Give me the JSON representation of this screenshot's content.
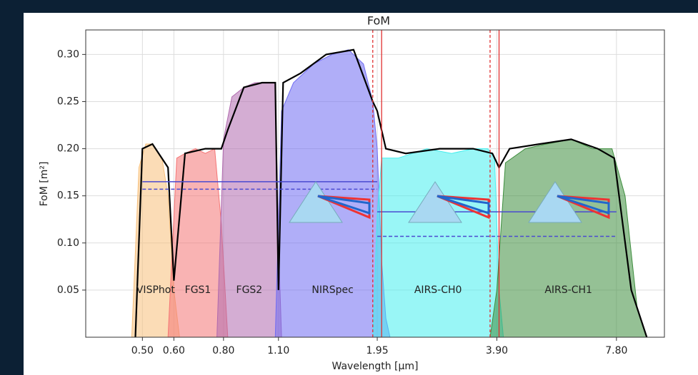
{
  "chart_data": {
    "type": "area",
    "title": "FoM",
    "xlabel": "Wavelength [μm]",
    "ylabel": "FoM [m²]",
    "xscale": "log",
    "grid": true,
    "xlim": [
      0.36,
      10.3
    ],
    "ylim": [
      0,
      0.326
    ],
    "xticks": [
      {
        "value": 0.5,
        "label": "0.50"
      },
      {
        "value": 0.6,
        "label": "0.60"
      },
      {
        "value": 0.8,
        "label": "0.80"
      },
      {
        "value": 1.1,
        "label": "1.10"
      },
      {
        "value": 1.95,
        "label": "1.95"
      },
      {
        "value": 3.9,
        "label": "3.90"
      },
      {
        "value": 7.8,
        "label": "7.80"
      }
    ],
    "yticks": [
      0.05,
      {
        "value": 0.1,
        "label": "0.10"
      },
      0.15,
      {
        "value": 0.2,
        "label": "0.20"
      },
      0.25,
      {
        "value": 0.3,
        "label": "0.30"
      }
    ],
    "series": [
      {
        "name": "VISPhot",
        "color": "#f7bf7a",
        "x": [
          0.47,
          0.49,
          0.51,
          0.53,
          0.56,
          0.58,
          0.6,
          0.62
        ],
        "values": [
          0,
          0.18,
          0.205,
          0.205,
          0.19,
          0.15,
          0.05,
          0
        ]
      },
      {
        "name": "FGS1",
        "color": "#f47575",
        "x": [
          0.58,
          0.61,
          0.64,
          0.68,
          0.72,
          0.76,
          0.79,
          0.82
        ],
        "values": [
          0,
          0.19,
          0.195,
          0.2,
          0.195,
          0.2,
          0.12,
          0
        ]
      },
      {
        "name": "FGS2",
        "color": "#b06aae",
        "x": [
          0.77,
          0.8,
          0.84,
          0.9,
          0.96,
          1.02,
          1.08,
          1.1,
          1.12
        ],
        "values": [
          0,
          0.21,
          0.255,
          0.265,
          0.27,
          0.27,
          0.27,
          0.1,
          0
        ]
      },
      {
        "name": "NIRSpec",
        "color": "#6f6cf2",
        "x": [
          1.08,
          1.12,
          1.2,
          1.35,
          1.5,
          1.65,
          1.8,
          1.9,
          1.95,
          2.0,
          2.05,
          2.1
        ],
        "values": [
          0,
          0.24,
          0.27,
          0.29,
          0.3,
          0.305,
          0.29,
          0.25,
          0.2,
          0.08,
          0.02,
          0
        ]
      },
      {
        "name": "AIRS-CH0",
        "color": "#45eeee",
        "x": [
          1.9,
          1.95,
          2.0,
          2.2,
          2.6,
          3.0,
          3.4,
          3.7,
          3.85,
          3.95,
          4.05
        ],
        "values": [
          0,
          0.13,
          0.19,
          0.19,
          0.2,
          0.195,
          0.2,
          0.2,
          0.19,
          0.05,
          0
        ]
      },
      {
        "name": "AIRS-CH1",
        "color": "#3e8e3e",
        "x": [
          3.75,
          3.9,
          4.1,
          4.6,
          5.2,
          6.0,
          6.8,
          7.6,
          8.2,
          8.8,
          9.3
        ],
        "values": [
          0,
          0.05,
          0.185,
          0.2,
          0.205,
          0.21,
          0.2,
          0.2,
          0.15,
          0.03,
          0
        ]
      },
      {
        "color": "#000000",
        "x": [
          0.48,
          0.5,
          0.53,
          0.58,
          0.6,
          0.64,
          0.72,
          0.79,
          0.82,
          0.9,
          1.0,
          1.08,
          1.1,
          1.13,
          1.25,
          1.45,
          1.7,
          1.9,
          1.95,
          2.05,
          2.3,
          2.8,
          3.4,
          3.8,
          3.95,
          4.2,
          5.0,
          6.0,
          7.0,
          7.7,
          8.5,
          9.3
        ],
        "values": [
          0,
          0.2,
          0.205,
          0.18,
          0.06,
          0.195,
          0.2,
          0.2,
          0.22,
          0.265,
          0.27,
          0.27,
          0.05,
          0.27,
          0.28,
          0.3,
          0.305,
          0.25,
          0.24,
          0.2,
          0.195,
          0.2,
          0.2,
          0.195,
          0.18,
          0.2,
          0.205,
          0.21,
          0.2,
          0.19,
          0.05,
          0
        ]
      }
    ],
    "hlines": [
      {
        "y": 0.165,
        "x": [
          0.5,
          1.95
        ],
        "color": "#4a4ad0",
        "style": "solid"
      },
      {
        "y": 0.157,
        "x": [
          0.5,
          1.95
        ],
        "color": "#4a4ad0",
        "style": "dashed"
      },
      {
        "y": 0.133,
        "x": [
          1.95,
          7.8
        ],
        "color": "#4a4ad0",
        "style": "solid"
      },
      {
        "y": 0.107,
        "x": [
          1.95,
          7.8
        ],
        "color": "#4a4ad0",
        "style": "dashed"
      }
    ],
    "vlines": [
      {
        "x": 1.9,
        "color": "#e03030",
        "style": "dashed"
      },
      {
        "x": 2.0,
        "color": "#e03030",
        "style": "solid"
      },
      {
        "x": 3.75,
        "color": "#e03030",
        "style": "dashed"
      },
      {
        "x": 3.95,
        "color": "#e03030",
        "style": "solid"
      }
    ]
  }
}
